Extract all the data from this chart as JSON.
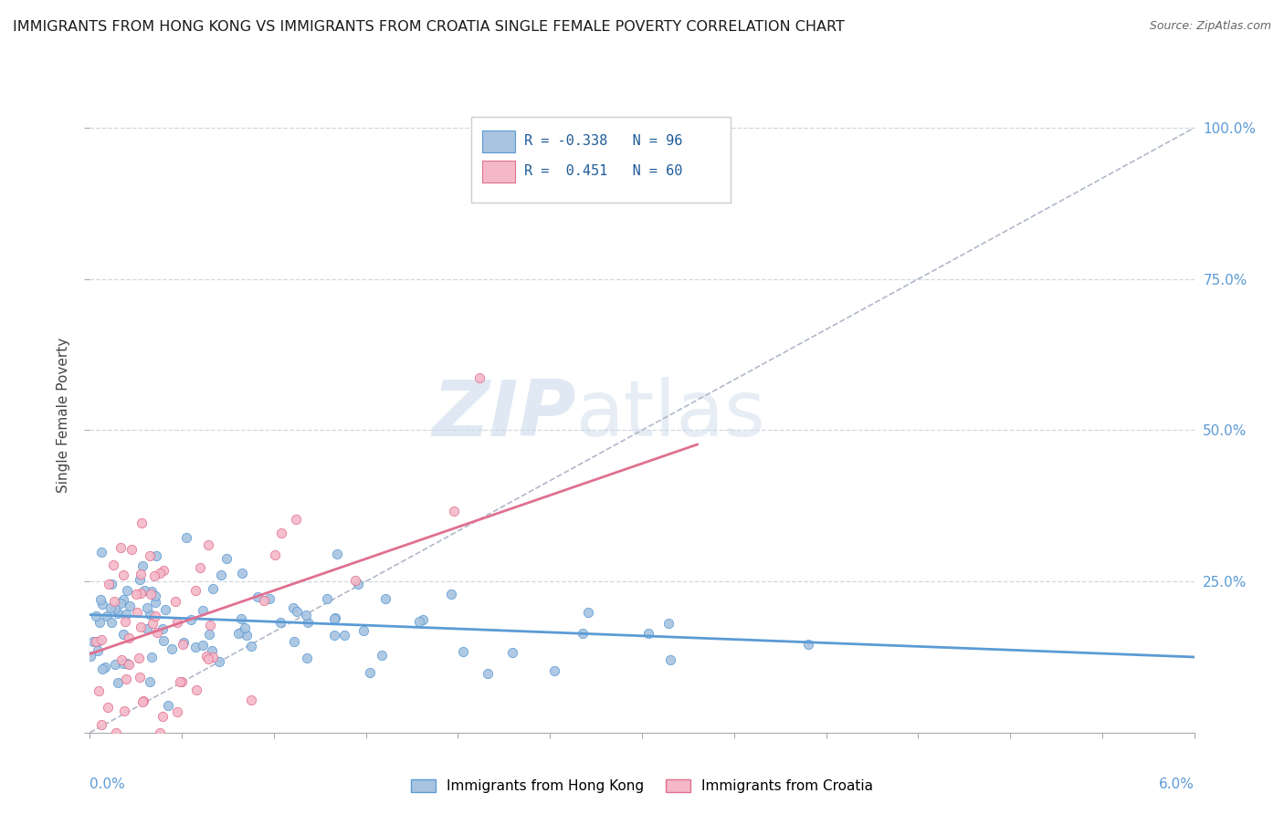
{
  "title": "IMMIGRANTS FROM HONG KONG VS IMMIGRANTS FROM CROATIA SINGLE FEMALE POVERTY CORRELATION CHART",
  "source": "Source: ZipAtlas.com",
  "ylabel": "Single Female Poverty",
  "r_hk": -0.338,
  "n_hk": 96,
  "r_cr": 0.451,
  "n_cr": 60,
  "hk_color": "#a8c4e0",
  "hk_line_color": "#5b9bd5",
  "cr_color": "#f4b8c8",
  "cr_line_color": "#e07090",
  "watermark_zip": "ZIP",
  "watermark_atlas": "atlas",
  "background_color": "#ffffff",
  "title_fontsize": 11.5,
  "axis_label_color": "#5b9bd5",
  "legend_text_color": "#1f5c99",
  "right_tick_color": "#5b9bd5",
  "grid_color": "#d0d8e0",
  "diagonal_color": "#b0b8c8",
  "hk_slope": -1.1667,
  "hk_intercept": 0.195,
  "cr_slope": 10.5,
  "cr_intercept": 0.13
}
